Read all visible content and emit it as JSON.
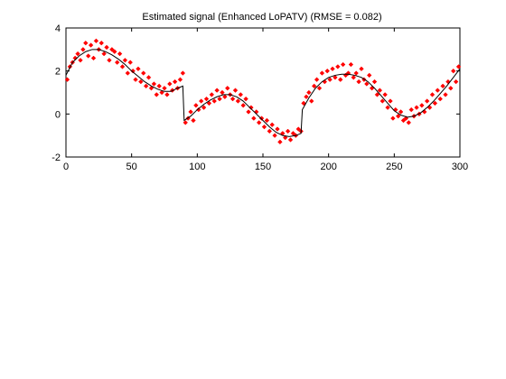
{
  "chart_data": {
    "type": "scatter",
    "title": "Estimated signal (Enhanced LoPATV) (RMSE = 0.082)",
    "xlabel": "",
    "ylabel": "",
    "xlim": [
      0,
      300
    ],
    "ylim": [
      -2,
      4
    ],
    "x_ticks": [
      "0",
      "50",
      "100",
      "150",
      "200",
      "250",
      "300"
    ],
    "y_ticks": [
      "-2",
      "0",
      "2",
      "4"
    ],
    "grid": false,
    "legend": "none",
    "colors": {
      "noisy": "#ff0000",
      "estimate": "#000000",
      "axes": "#000000"
    },
    "estimate_line": {
      "x": [
        0,
        5,
        10,
        15,
        20,
        25,
        30,
        35,
        40,
        45,
        50,
        55,
        60,
        65,
        70,
        75,
        80,
        85,
        89,
        90,
        95,
        100,
        105,
        110,
        115,
        120,
        125,
        130,
        135,
        140,
        145,
        150,
        155,
        160,
        165,
        170,
        175,
        179,
        180,
        185,
        190,
        195,
        200,
        205,
        210,
        215,
        220,
        225,
        230,
        235,
        240,
        245,
        250,
        255,
        260,
        265,
        270,
        275,
        280,
        285,
        290,
        295,
        300
      ],
      "y": [
        1.8,
        2.4,
        2.7,
        2.9,
        3.0,
        3.0,
        2.9,
        2.75,
        2.55,
        2.3,
        2.0,
        1.75,
        1.5,
        1.3,
        1.15,
        1.05,
        1.05,
        1.2,
        1.3,
        -0.3,
        -0.1,
        0.2,
        0.45,
        0.65,
        0.8,
        0.9,
        0.9,
        0.8,
        0.6,
        0.3,
        0.0,
        -0.3,
        -0.6,
        -0.85,
        -1.0,
        -1.05,
        -1.0,
        -0.9,
        0.2,
        0.75,
        1.2,
        1.5,
        1.7,
        1.8,
        1.85,
        1.85,
        1.8,
        1.7,
        1.5,
        1.2,
        0.85,
        0.5,
        0.15,
        -0.05,
        -0.15,
        -0.1,
        0.05,
        0.3,
        0.6,
        0.95,
        1.3,
        1.7,
        2.1
      ]
    },
    "noisy_points": {
      "x": [
        1,
        3,
        5,
        7,
        9,
        11,
        13,
        15,
        17,
        19,
        21,
        23,
        25,
        27,
        29,
        31,
        33,
        35,
        37,
        39,
        41,
        43,
        45,
        47,
        49,
        51,
        53,
        55,
        57,
        59,
        61,
        63,
        65,
        67,
        69,
        71,
        73,
        75,
        77,
        79,
        81,
        83,
        85,
        87,
        89,
        91,
        93,
        95,
        97,
        99,
        101,
        103,
        105,
        107,
        109,
        111,
        113,
        115,
        117,
        119,
        121,
        123,
        125,
        127,
        129,
        131,
        133,
        135,
        137,
        139,
        141,
        143,
        145,
        147,
        149,
        151,
        153,
        155,
        157,
        159,
        161,
        163,
        165,
        167,
        169,
        171,
        173,
        175,
        177,
        179,
        181,
        183,
        185,
        187,
        189,
        191,
        193,
        195,
        197,
        199,
        201,
        203,
        205,
        207,
        209,
        211,
        213,
        215,
        217,
        219,
        221,
        223,
        225,
        227,
        229,
        231,
        233,
        235,
        237,
        239,
        241,
        243,
        245,
        247,
        249,
        251,
        253,
        255,
        257,
        259,
        261,
        263,
        265,
        267,
        269,
        271,
        273,
        275,
        277,
        279,
        281,
        283,
        285,
        287,
        289,
        291,
        293,
        295,
        297,
        299
      ],
      "y": [
        1.6,
        2.2,
        2.4,
        2.6,
        2.8,
        2.5,
        3.0,
        3.3,
        2.7,
        3.2,
        2.6,
        3.4,
        3.0,
        3.3,
        2.8,
        3.1,
        2.5,
        3.0,
        2.9,
        2.4,
        2.8,
        2.2,
        2.5,
        1.9,
        2.4,
        2.0,
        1.6,
        2.1,
        1.5,
        1.9,
        1.3,
        1.7,
        1.2,
        1.4,
        0.9,
        1.3,
        1.0,
        1.2,
        0.9,
        1.4,
        1.1,
        1.5,
        1.2,
        1.6,
        1.9,
        -0.4,
        -0.2,
        0.1,
        -0.3,
        0.4,
        0.2,
        0.6,
        0.3,
        0.7,
        0.5,
        0.9,
        0.6,
        1.1,
        0.7,
        1.0,
        0.8,
        1.2,
        0.9,
        0.7,
        1.1,
        0.6,
        0.9,
        0.4,
        0.7,
        0.1,
        0.3,
        -0.2,
        0.1,
        -0.4,
        -0.2,
        -0.6,
        -0.3,
        -0.8,
        -0.5,
        -1.0,
        -0.7,
        -1.3,
        -0.9,
        -1.1,
        -0.8,
        -1.2,
        -0.9,
        -1.0,
        -0.7,
        -0.8,
        0.5,
        0.8,
        1.0,
        0.6,
        1.3,
        1.6,
        1.2,
        1.9,
        1.5,
        2.0,
        1.6,
        2.1,
        1.7,
        2.2,
        1.6,
        2.3,
        1.8,
        1.9,
        2.3,
        1.7,
        1.9,
        1.5,
        2.1,
        1.6,
        1.4,
        1.8,
        1.2,
        1.5,
        0.9,
        1.1,
        0.6,
        0.9,
        0.3,
        0.6,
        -0.2,
        0.2,
        -0.1,
        0.1,
        -0.3,
        -0.2,
        -0.4,
        0.2,
        -0.1,
        0.3,
        0.0,
        0.4,
        0.1,
        0.6,
        0.3,
        0.9,
        0.5,
        1.1,
        0.7,
        1.3,
        0.9,
        1.5,
        1.2,
        2.0,
        1.5,
        2.2
      ]
    }
  }
}
